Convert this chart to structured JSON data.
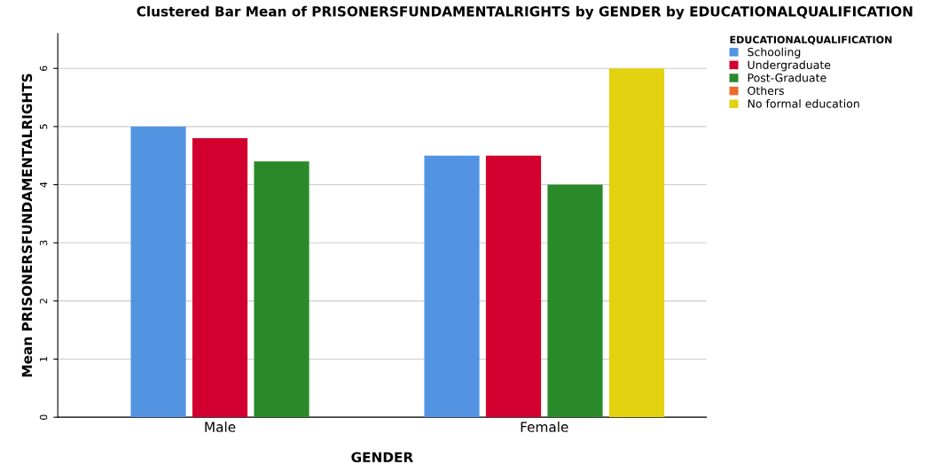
{
  "chart_data": {
    "type": "bar",
    "title": "Clustered Bar Mean of PRISONERSFUNDAMENTALRIGHTS by GENDER by EDUCATIONALQUALIFICATION",
    "xlabel": "GENDER",
    "ylabel": "Mean PRISONERSFUNDAMENTALRIGHTS",
    "legend_title": "EDUCATIONALQUALIFICATION",
    "categories": [
      "Male",
      "Female"
    ],
    "series": [
      {
        "name": "Schooling",
        "color": "#5294e2",
        "values": [
          5.0,
          4.5
        ]
      },
      {
        "name": "Undergraduate",
        "color": "#d2002f",
        "values": [
          4.8,
          4.5
        ]
      },
      {
        "name": "Post-Graduate",
        "color": "#2a8a2a",
        "values": [
          4.4,
          4.0
        ]
      },
      {
        "name": "Others",
        "color": "#ee6a2c",
        "values": [
          null,
          null
        ]
      },
      {
        "name": "No formal education",
        "color": "#e2d210",
        "values": [
          null,
          6.0
        ]
      }
    ],
    "ylim": [
      0,
      6.6
    ],
    "yticks": [
      0,
      1,
      2,
      3,
      4,
      5,
      6
    ],
    "grid": "y",
    "legend": "top right"
  }
}
